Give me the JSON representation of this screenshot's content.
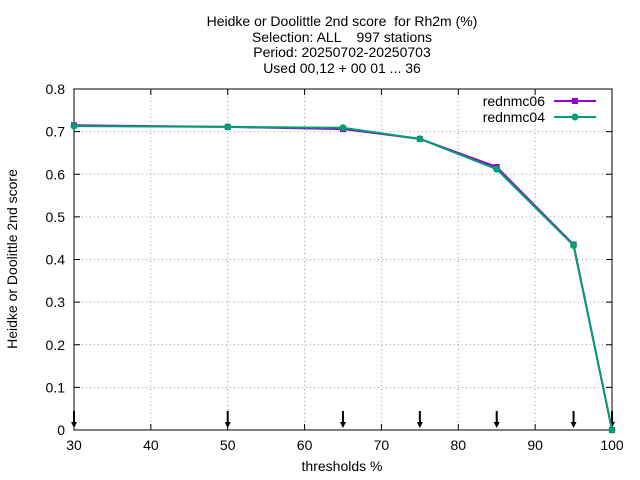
{
  "chart_data": {
    "type": "line",
    "title_lines": [
      "Heidke or Doolittle 2nd score  for Rh2m (%)",
      "Selection: ALL    997 stations",
      "Period: 20250702-20250703",
      "Used 00,12 + 00 01 ... 36"
    ],
    "xlabel": "thresholds %",
    "ylabel": "Heidke or Doolittle 2nd score",
    "xlim": [
      30,
      100
    ],
    "ylim": [
      0,
      0.8
    ],
    "xticks": [
      "30",
      "40",
      "50",
      "60",
      "70",
      "80",
      "90",
      "100"
    ],
    "yticks": [
      "0",
      "0.1",
      "0.2",
      "0.3",
      "0.4",
      "0.5",
      "0.6",
      "0.7",
      "0.8"
    ],
    "grid": true,
    "legend_position": "top-right",
    "series": [
      {
        "name": "rednmc06",
        "color": "#9400d3",
        "x": [
          30,
          50,
          65,
          75,
          85,
          95,
          100
        ],
        "y": [
          0.715,
          0.711,
          0.706,
          0.683,
          0.617,
          0.435,
          0.0
        ]
      },
      {
        "name": "rednmc04",
        "color": "#009e73",
        "x": [
          30,
          50,
          65,
          75,
          85,
          95,
          100
        ],
        "y": [
          0.713,
          0.711,
          0.709,
          0.683,
          0.612,
          0.433,
          0.0
        ]
      }
    ],
    "threshold_markers_x": [
      30,
      50,
      65,
      75,
      85,
      95,
      100
    ]
  }
}
